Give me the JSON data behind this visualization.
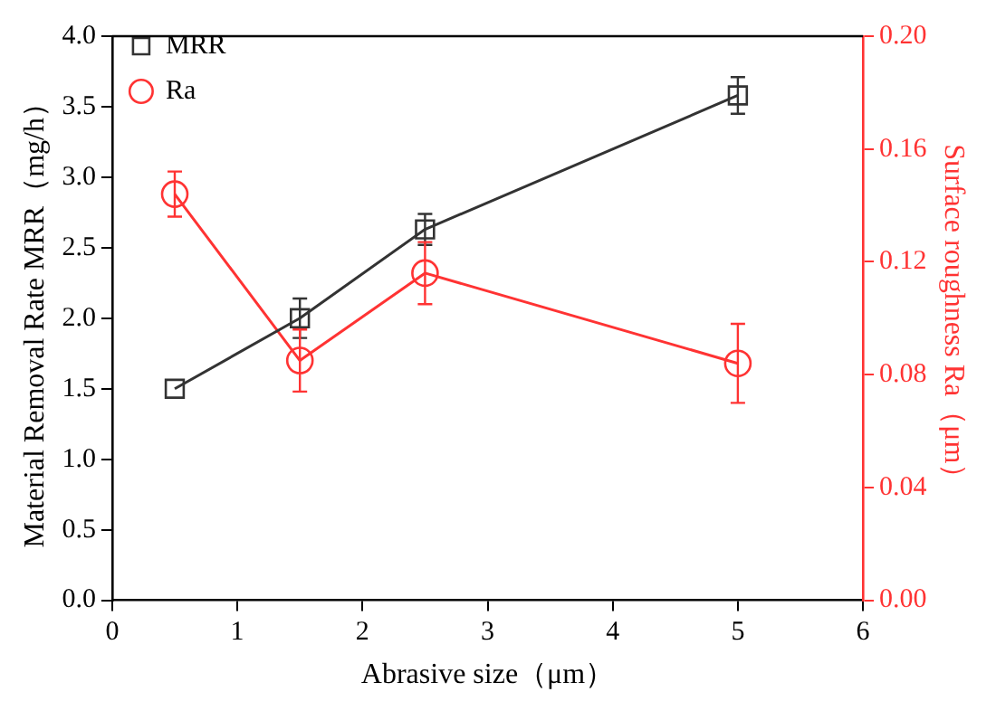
{
  "chart_data": {
    "type": "line",
    "xlabel": "Abrasive size（μm）",
    "ylabel": "Material Removal Rate MRR（mg/h）",
    "y2label": "Surface roughness Ra（μm）",
    "x": [
      0.5,
      1.5,
      2.5,
      5
    ],
    "series": [
      {
        "name": "MRR",
        "color": "#333333",
        "marker": "square",
        "values": [
          1.5,
          2.0,
          2.63,
          3.58
        ],
        "errors": [
          null,
          0.14,
          0.11,
          0.13
        ]
      },
      {
        "name": "Ra",
        "color": "#ff3333",
        "marker": "circle",
        "axis": "y2",
        "values": [
          0.144,
          0.085,
          0.116,
          0.084
        ],
        "errors": [
          0.008,
          0.011,
          0.011,
          0.014
        ]
      }
    ],
    "xlim": [
      0,
      6
    ],
    "xticks": [
      0,
      1,
      2,
      3,
      4,
      5,
      6
    ],
    "ylim": [
      0,
      4
    ],
    "yticks": [
      {
        "value": 0,
        "label": "0.0"
      },
      {
        "value": 0.5,
        "label": "0.5"
      },
      {
        "value": 1,
        "label": "1.0"
      },
      {
        "value": 1.5,
        "label": "1.5"
      },
      {
        "value": 2,
        "label": "2.0"
      },
      {
        "value": 2.5,
        "label": "2.5"
      },
      {
        "value": 3,
        "label": "3.0"
      },
      {
        "value": 3.5,
        "label": "3.5"
      },
      {
        "value": 4,
        "label": "4.0"
      }
    ],
    "y2lim": [
      0,
      0.2
    ],
    "y2ticks": [
      {
        "value": 0,
        "label": "0.00"
      },
      {
        "value": 0.04,
        "label": "0.04"
      },
      {
        "value": 0.08,
        "label": "0.08"
      },
      {
        "value": 0.12,
        "label": "0.12"
      },
      {
        "value": 0.16,
        "label": "0.16"
      },
      {
        "value": 0.2,
        "label": "0.20"
      }
    ],
    "grid": false,
    "legend": "top left",
    "line_style": "solid"
  }
}
